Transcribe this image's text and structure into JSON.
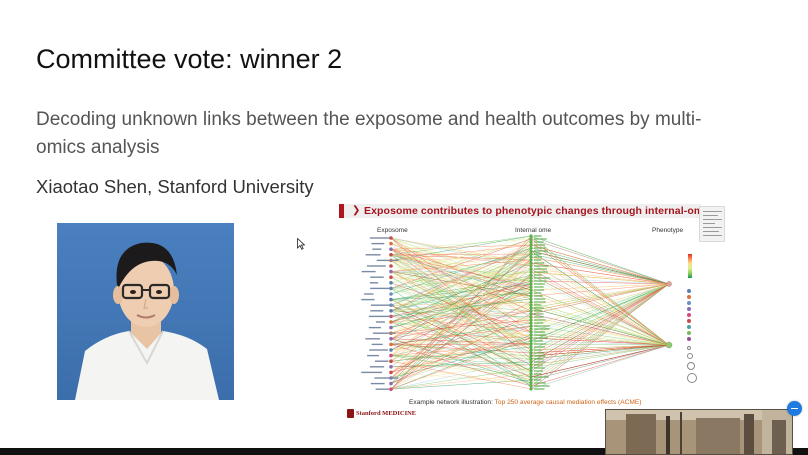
{
  "slide": {
    "title": "Committee vote: winner 2",
    "subtitle": "Decoding unknown links between the exposome and health outcomes by multi-omics analysis",
    "author": "Xiaotao Shen, Stanford University"
  },
  "figure": {
    "title": "Exposome contributes to phenotypic changes through internal-ome",
    "columns": {
      "left": "Exposome",
      "middle": "Internal ome",
      "right": "Phenotype"
    },
    "caption_prefix": "Example network illustration: ",
    "caption_highlight": "Top 250 average causal mediation effects (ACME)",
    "logo_text": "Stanford MEDICINE"
  },
  "colors": {
    "accent_red": "#a6131c",
    "portrait_bg": "#3f74b4",
    "fab_blue": "#1f7be0"
  },
  "icons": {
    "cursor": "mouse-pointer-icon",
    "fab": "minus-icon"
  }
}
